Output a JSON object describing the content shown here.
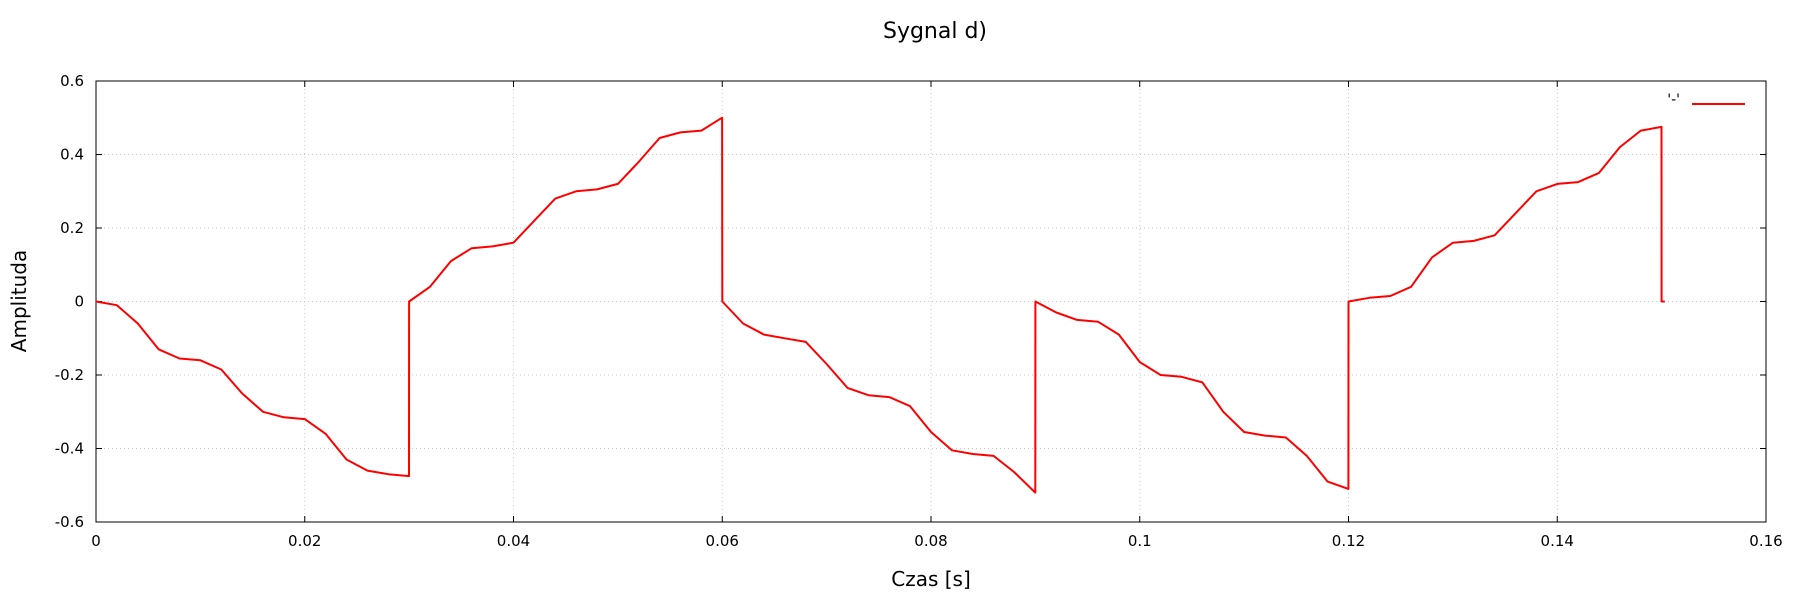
{
  "chart_data": {
    "type": "line",
    "title": "Sygnal d)",
    "xlabel": "Czas [s]",
    "ylabel": "Amplituda",
    "xlim": [
      0,
      0.16
    ],
    "ylim": [
      -0.6,
      0.6
    ],
    "xticks": [
      0,
      0.02,
      0.04,
      0.06,
      0.08,
      0.1,
      0.12,
      0.14,
      0.16
    ],
    "xtick_labels": [
      "0",
      "0.02",
      "0.04",
      "0.06",
      "0.08",
      "0.1",
      "0.12",
      "0.14",
      "0.16"
    ],
    "yticks": [
      -0.6,
      -0.4,
      -0.2,
      0,
      0.2,
      0.4,
      0.6
    ],
    "ytick_labels": [
      "-0.6",
      "-0.4",
      "-0.2",
      "0",
      "0.2",
      "0.4",
      "0.6"
    ],
    "grid": true,
    "legend_position": "top-right",
    "series": [
      {
        "name": "'-'",
        "color": "#ff0000",
        "x": [
          0,
          0.002,
          0.004,
          0.006,
          0.008,
          0.01,
          0.012,
          0.014,
          0.016,
          0.018,
          0.02,
          0.022,
          0.024,
          0.026,
          0.028,
          0.02999,
          0.03,
          0.032,
          0.034,
          0.036,
          0.038,
          0.04,
          0.042,
          0.044,
          0.046,
          0.048,
          0.05,
          0.052,
          0.054,
          0.056,
          0.058,
          0.05999,
          0.06,
          0.062,
          0.064,
          0.066,
          0.068,
          0.07,
          0.072,
          0.074,
          0.076,
          0.078,
          0.08,
          0.082,
          0.084,
          0.086,
          0.088,
          0.08999,
          0.09,
          0.092,
          0.094,
          0.096,
          0.098,
          0.1,
          0.102,
          0.104,
          0.106,
          0.108,
          0.11,
          0.112,
          0.114,
          0.116,
          0.118,
          0.11999,
          0.12,
          0.122,
          0.124,
          0.126,
          0.128,
          0.13,
          0.132,
          0.134,
          0.136,
          0.138,
          0.14,
          0.142,
          0.144,
          0.146,
          0.148,
          0.14999,
          0.15,
          0.1503
        ],
        "y": [
          0,
          -0.01,
          -0.06,
          -0.13,
          -0.155,
          -0.16,
          -0.185,
          -0.25,
          -0.3,
          -0.315,
          -0.32,
          -0.36,
          -0.43,
          -0.46,
          -0.47,
          -0.475,
          0,
          0.04,
          0.11,
          0.145,
          0.15,
          0.16,
          0.22,
          0.28,
          0.3,
          0.305,
          0.32,
          0.38,
          0.445,
          0.46,
          0.465,
          0.5,
          0,
          -0.06,
          -0.09,
          -0.1,
          -0.11,
          -0.17,
          -0.235,
          -0.255,
          -0.26,
          -0.285,
          -0.355,
          -0.405,
          -0.415,
          -0.42,
          -0.465,
          -0.52,
          0,
          -0.03,
          -0.05,
          -0.055,
          -0.09,
          -0.165,
          -0.2,
          -0.205,
          -0.22,
          -0.3,
          -0.355,
          -0.365,
          -0.37,
          -0.42,
          -0.49,
          -0.51,
          0,
          0.01,
          0.015,
          0.04,
          0.12,
          0.16,
          0.165,
          0.18,
          0.24,
          0.3,
          0.32,
          0.325,
          0.35,
          0.42,
          0.465,
          0.475,
          0,
          0
        ]
      }
    ]
  }
}
